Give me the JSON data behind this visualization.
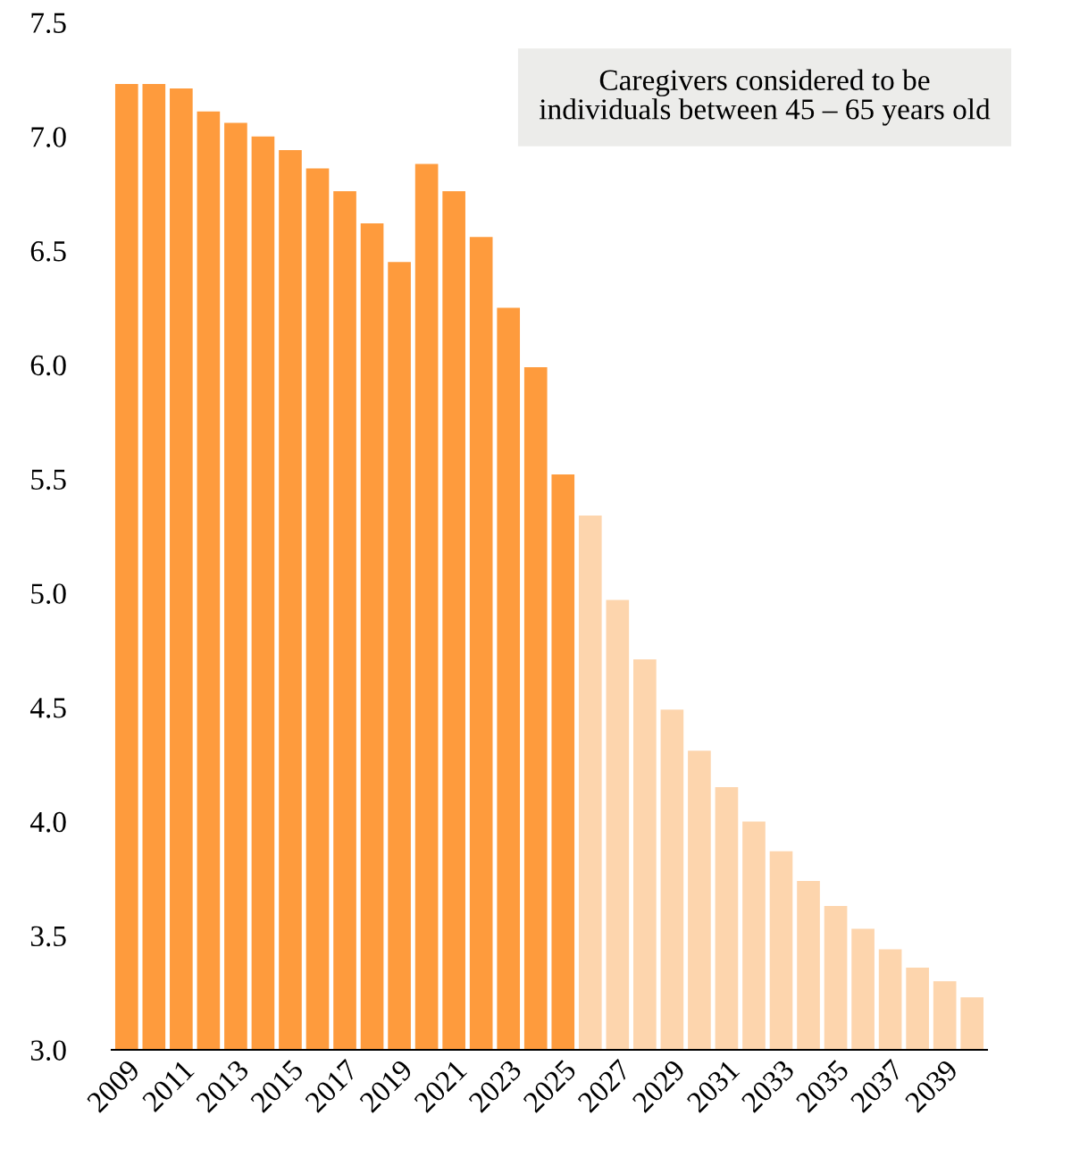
{
  "chart_data": {
    "type": "bar",
    "categories": [
      "2009",
      null,
      "2011",
      null,
      "2013",
      null,
      "2015",
      null,
      "2017",
      null,
      "2019",
      null,
      "2021",
      null,
      "2023",
      null,
      "2025",
      null,
      "2027",
      null,
      "2029",
      null,
      "2031",
      null,
      "2033",
      null,
      "2035",
      null,
      "2037",
      null,
      "2039",
      null
    ],
    "values": [
      7.23,
      7.23,
      7.21,
      7.11,
      7.06,
      7.0,
      6.94,
      6.86,
      6.76,
      6.62,
      6.45,
      6.88,
      6.76,
      6.56,
      6.25,
      5.99,
      5.52,
      5.34,
      4.97,
      4.71,
      4.49,
      4.31,
      4.15,
      4.0,
      3.87,
      3.74,
      3.63,
      3.53,
      3.44,
      3.36,
      3.3,
      3.23
    ],
    "colors": [
      "#fe9b3d",
      "#fe9b3d",
      "#fe9b3d",
      "#fe9b3d",
      "#fe9b3d",
      "#fe9b3d",
      "#fe9b3d",
      "#fe9b3d",
      "#fe9b3d",
      "#fe9b3d",
      "#fe9b3d",
      "#fe9b3d",
      "#fe9b3d",
      "#fe9b3d",
      "#fe9b3d",
      "#fe9b3d",
      "#fe9b3d",
      "#fdd5ad",
      "#fdd5ad",
      "#fdd5ad",
      "#fdd5ad",
      "#fdd5ad",
      "#fdd5ad",
      "#fdd5ad",
      "#fdd5ad",
      "#fdd5ad",
      "#fdd5ad",
      "#fdd5ad",
      "#fdd5ad",
      "#fdd5ad",
      "#fdd5ad",
      "#fdd5ad"
    ],
    "ylim": [
      3.0,
      7.5
    ],
    "yticks": [
      {
        "value": 3.0,
        "label": "3.0"
      },
      {
        "value": 3.5,
        "label": "3.5"
      },
      {
        "value": 4.0,
        "label": "4.0"
      },
      {
        "value": 4.5,
        "label": "4.5"
      },
      {
        "value": 5.0,
        "label": "5.0"
      },
      {
        "value": 5.5,
        "label": "5.5"
      },
      {
        "value": 6.0,
        "label": "6.0"
      },
      {
        "value": 6.5,
        "label": "6.5"
      },
      {
        "value": 7.0,
        "label": "7.0"
      },
      {
        "value": 7.5,
        "label": "7.5"
      }
    ],
    "annotations": [
      "Caregivers considered to be\nindividuals between 45 – 65 years old"
    ],
    "grid": false,
    "legend": false
  }
}
